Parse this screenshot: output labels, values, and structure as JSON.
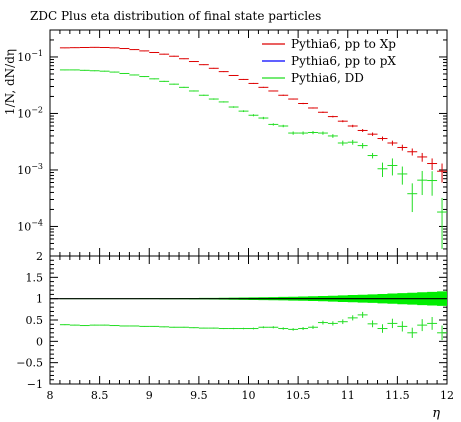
{
  "chart_data": [
    {
      "type": "scatter",
      "panel": "main",
      "title": "ZDC Plus eta distribution of final state particles",
      "xlabel": "",
      "ylabel": "1/N, dN/dη",
      "yscale": "log",
      "ylim": [
        3e-05,
        0.3
      ],
      "xlim": [
        8.0,
        12.0
      ],
      "legend_position": "top-right",
      "yticks": [
        {
          "v": 0.1,
          "base": "10",
          "exp": "−1"
        },
        {
          "v": 0.01,
          "base": "10",
          "exp": "−2"
        },
        {
          "v": 0.001,
          "base": "10",
          "exp": "−3"
        },
        {
          "v": 0.0001,
          "base": "10",
          "exp": "−4"
        }
      ],
      "series": [
        {
          "name": "Pythia6, pp to Xp",
          "color": "#dd0000",
          "x": [
            8.15,
            8.25,
            8.35,
            8.45,
            8.55,
            8.65,
            8.75,
            8.85,
            8.95,
            9.05,
            9.15,
            9.25,
            9.35,
            9.45,
            9.55,
            9.65,
            9.75,
            9.85,
            9.95,
            10.05,
            10.15,
            10.25,
            10.35,
            10.45,
            10.55,
            10.65,
            10.75,
            10.85,
            10.95,
            11.05,
            11.15,
            11.25,
            11.35,
            11.45,
            11.55,
            11.65,
            11.75,
            11.85,
            11.95
          ],
          "y": [
            0.145,
            0.146,
            0.147,
            0.148,
            0.147,
            0.145,
            0.141,
            0.135,
            0.128,
            0.12,
            0.112,
            0.103,
            0.093,
            0.083,
            0.073,
            0.063,
            0.055,
            0.047,
            0.04,
            0.034,
            0.029,
            0.025,
            0.021,
            0.018,
            0.015,
            0.0125,
            0.0105,
            0.0088,
            0.0073,
            0.006,
            0.005,
            0.0043,
            0.0036,
            0.003,
            0.0025,
            0.0021,
            0.0017,
            0.0013,
            0.00095
          ],
          "yerr": [
            0.002,
            0.002,
            0.002,
            0.002,
            0.002,
            0.002,
            0.002,
            0.002,
            0.002,
            0.002,
            0.002,
            0.002,
            0.0015,
            0.0015,
            0.0012,
            0.0011,
            0.001,
            0.0009,
            0.0008,
            0.0007,
            0.0006,
            0.0005,
            0.0005,
            0.0004,
            0.0004,
            0.0003,
            0.0003,
            0.0003,
            0.0003,
            0.0003,
            0.0003,
            0.0003,
            0.0003,
            0.0003,
            0.0003,
            0.0003,
            0.0003,
            0.0003,
            0.00035
          ]
        },
        {
          "name": "Pythia6, pp to pX",
          "color": "#0000ff",
          "x": [],
          "y": []
        },
        {
          "name": "Pythia6, DD",
          "color": "#22dd22",
          "x": [
            8.15,
            8.25,
            8.35,
            8.45,
            8.55,
            8.65,
            8.75,
            8.85,
            8.95,
            9.05,
            9.15,
            9.25,
            9.35,
            9.45,
            9.55,
            9.65,
            9.75,
            9.85,
            9.95,
            10.05,
            10.15,
            10.25,
            10.35,
            10.45,
            10.55,
            10.65,
            10.75,
            10.85,
            10.95,
            11.05,
            11.15,
            11.25,
            11.35,
            11.45,
            11.55,
            11.65,
            11.75,
            11.85,
            11.95
          ],
          "y": [
            0.059,
            0.059,
            0.058,
            0.057,
            0.056,
            0.054,
            0.051,
            0.048,
            0.045,
            0.041,
            0.037,
            0.033,
            0.029,
            0.025,
            0.021,
            0.018,
            0.016,
            0.013,
            0.011,
            0.0093,
            0.0083,
            0.0064,
            0.006,
            0.0045,
            0.0045,
            0.0046,
            0.0045,
            0.004,
            0.003,
            0.0031,
            0.0027,
            0.0018,
            0.00105,
            0.0012,
            0.00085,
            0.00038,
            0.00066,
            0.00065,
            0.00018
          ],
          "yerr": [
            0.001,
            0.001,
            0.001,
            0.001,
            0.001,
            0.001,
            0.001,
            0.001,
            0.0009,
            0.0008,
            0.0008,
            0.0007,
            0.0006,
            0.0006,
            0.0005,
            0.0005,
            0.0004,
            0.0004,
            0.0004,
            0.0004,
            0.0004,
            0.0003,
            0.0003,
            0.0003,
            0.0003,
            0.0003,
            0.0003,
            0.0003,
            0.0003,
            0.0003,
            0.0003,
            0.0002,
            0.0003,
            0.0004,
            0.0003,
            0.0002,
            0.0003,
            0.0003,
            0.00014
          ]
        }
      ]
    },
    {
      "type": "scatter",
      "panel": "ratio",
      "xlabel": "η",
      "ylabel": "",
      "ylim": [
        -1,
        2
      ],
      "xlim": [
        8.0,
        12.0
      ],
      "yticks": [
        "−1",
        "−0.5",
        "0",
        "0.5",
        "1",
        "1.5",
        "2"
      ],
      "ytick_values": [
        -1,
        -0.5,
        0,
        0.5,
        1,
        1.5,
        2
      ],
      "xticks": [
        "8",
        "8.5",
        "9",
        "9.5",
        "10",
        "10.5",
        "11",
        "11.5",
        "12"
      ],
      "xtick_values": [
        8,
        8.5,
        9,
        9.5,
        10,
        10.5,
        11,
        11.5,
        12
      ],
      "reference_line": 1,
      "reference_band": {
        "color": "#00ee00",
        "x": [
          8.15,
          8.25,
          8.35,
          8.45,
          8.55,
          8.65,
          8.75,
          8.85,
          8.95,
          9.05,
          9.15,
          9.25,
          9.35,
          9.45,
          9.55,
          9.65,
          9.75,
          9.85,
          9.95,
          10.05,
          10.15,
          10.25,
          10.35,
          10.45,
          10.55,
          10.65,
          10.75,
          10.85,
          10.95,
          11.05,
          11.15,
          11.25,
          11.35,
          11.45,
          11.55,
          11.65,
          11.75,
          11.85,
          11.95
        ],
        "halfwidth": [
          0.01,
          0.01,
          0.01,
          0.01,
          0.01,
          0.01,
          0.01,
          0.01,
          0.012,
          0.012,
          0.013,
          0.014,
          0.015,
          0.016,
          0.018,
          0.02,
          0.022,
          0.024,
          0.027,
          0.03,
          0.033,
          0.037,
          0.041,
          0.046,
          0.05,
          0.056,
          0.062,
          0.069,
          0.077,
          0.085,
          0.093,
          0.1,
          0.11,
          0.12,
          0.13,
          0.14,
          0.15,
          0.16,
          0.17
        ]
      },
      "series": [
        {
          "name": "Pythia6, DD",
          "color": "#22dd22",
          "x": [
            8.15,
            8.25,
            8.35,
            8.45,
            8.55,
            8.65,
            8.75,
            8.85,
            8.95,
            9.05,
            9.15,
            9.25,
            9.35,
            9.45,
            9.55,
            9.65,
            9.75,
            9.85,
            9.95,
            10.05,
            10.15,
            10.25,
            10.35,
            10.45,
            10.55,
            10.65,
            10.75,
            10.85,
            10.95,
            11.05,
            11.15,
            11.25,
            11.35,
            11.45,
            11.55,
            11.65,
            11.75,
            11.85,
            11.95
          ],
          "y": [
            0.39,
            0.38,
            0.37,
            0.38,
            0.38,
            0.37,
            0.36,
            0.36,
            0.35,
            0.35,
            0.34,
            0.33,
            0.33,
            0.32,
            0.31,
            0.31,
            0.3,
            0.3,
            0.3,
            0.3,
            0.33,
            0.33,
            0.3,
            0.28,
            0.3,
            0.33,
            0.44,
            0.42,
            0.46,
            0.55,
            0.62,
            0.41,
            0.3,
            0.42,
            0.35,
            0.2,
            0.38,
            0.42,
            0.2
          ],
          "yerr": [
            0.01,
            0.01,
            0.01,
            0.01,
            0.01,
            0.01,
            0.01,
            0.01,
            0.01,
            0.01,
            0.01,
            0.01,
            0.01,
            0.01,
            0.01,
            0.012,
            0.013,
            0.015,
            0.017,
            0.02,
            0.022,
            0.025,
            0.028,
            0.03,
            0.035,
            0.04,
            0.045,
            0.05,
            0.055,
            0.06,
            0.07,
            0.08,
            0.1,
            0.11,
            0.12,
            0.12,
            0.14,
            0.15,
            0.17
          ]
        }
      ]
    }
  ]
}
